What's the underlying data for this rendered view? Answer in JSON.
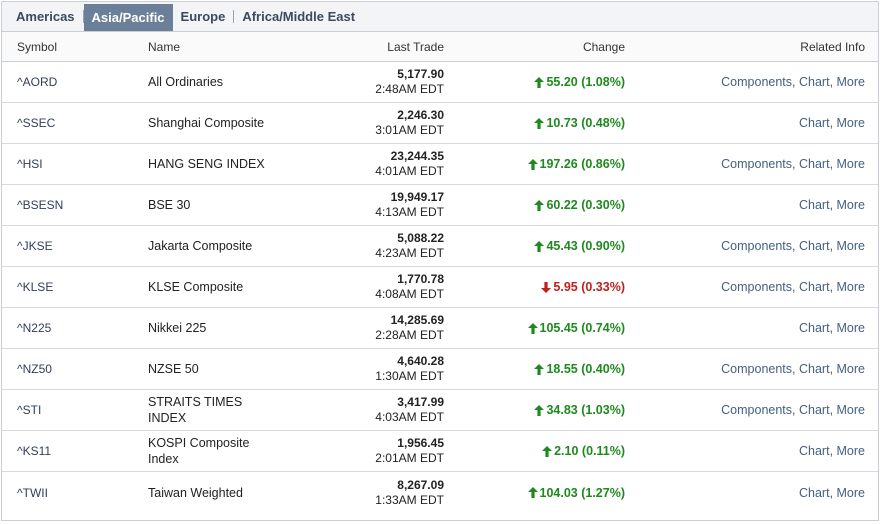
{
  "tabs": [
    {
      "label": "Americas",
      "active": false
    },
    {
      "label": "Asia/Pacific",
      "active": true
    },
    {
      "label": "Europe",
      "active": false
    },
    {
      "label": "Africa/Middle East",
      "active": false
    }
  ],
  "headers": {
    "symbol": "Symbol",
    "name": "Name",
    "last_trade": "Last Trade",
    "change": "Change",
    "related": "Related Info"
  },
  "colors": {
    "up": "#1e8a1e",
    "down": "#c0201c",
    "active_tab": "#6b7f99",
    "link": "#44607f"
  },
  "rows": [
    {
      "symbol": "^AORD",
      "name": "All Ordinaries",
      "price": "5,177.90",
      "time": "2:48AM EDT",
      "direction": "up",
      "change": "55.20 (1.08%)",
      "components": "Components",
      "chart": "Chart",
      "more": "More"
    },
    {
      "symbol": "^SSEC",
      "name": "Shanghai Composite",
      "price": "2,246.30",
      "time": "3:01AM EDT",
      "direction": "up",
      "change": "10.73 (0.48%)",
      "components": null,
      "chart": "Chart",
      "more": "More"
    },
    {
      "symbol": "^HSI",
      "name": "HANG SENG INDEX",
      "price": "23,244.35",
      "time": "4:01AM EDT",
      "direction": "up",
      "change": "197.26 (0.86%)",
      "components": "Components",
      "chart": "Chart",
      "more": "More"
    },
    {
      "symbol": "^BSESN",
      "name": "BSE 30",
      "price": "19,949.17",
      "time": "4:13AM EDT",
      "direction": "up",
      "change": "60.22 (0.30%)",
      "components": null,
      "chart": "Chart",
      "more": "More"
    },
    {
      "symbol": "^JKSE",
      "name": "Jakarta Composite",
      "price": "5,088.22",
      "time": "4:23AM EDT",
      "direction": "up",
      "change": "45.43 (0.90%)",
      "components": "Components",
      "chart": "Chart",
      "more": "More"
    },
    {
      "symbol": "^KLSE",
      "name": "KLSE Composite",
      "price": "1,770.78",
      "time": "4:08AM EDT",
      "direction": "down",
      "change": "5.95 (0.33%)",
      "components": "Components",
      "chart": "Chart",
      "more": "More"
    },
    {
      "symbol": "^N225",
      "name": "Nikkei 225",
      "price": "14,285.69",
      "time": "2:28AM EDT",
      "direction": "up",
      "change": "105.45 (0.74%)",
      "components": null,
      "chart": "Chart",
      "more": "More"
    },
    {
      "symbol": "^NZ50",
      "name": "NZSE 50",
      "price": "4,640.28",
      "time": "1:30AM EDT",
      "direction": "up",
      "change": "18.55 (0.40%)",
      "components": "Components",
      "chart": "Chart",
      "more": "More"
    },
    {
      "symbol": "^STI",
      "name": "STRAITS TIMES INDEX",
      "price": "3,417.99",
      "time": "4:03AM EDT",
      "direction": "up",
      "change": "34.83 (1.03%)",
      "components": "Components",
      "chart": "Chart",
      "more": "More"
    },
    {
      "symbol": "^KS11",
      "name": "KOSPI Composite Index",
      "price": "1,956.45",
      "time": "2:01AM EDT",
      "direction": "up",
      "change": "2.10 (0.11%)",
      "components": null,
      "chart": "Chart",
      "more": "More"
    },
    {
      "symbol": "^TWII",
      "name": "Taiwan Weighted",
      "price": "8,267.09",
      "time": "1:33AM EDT",
      "direction": "up",
      "change": "104.03 (1.27%)",
      "components": null,
      "chart": "Chart",
      "more": "More"
    }
  ]
}
